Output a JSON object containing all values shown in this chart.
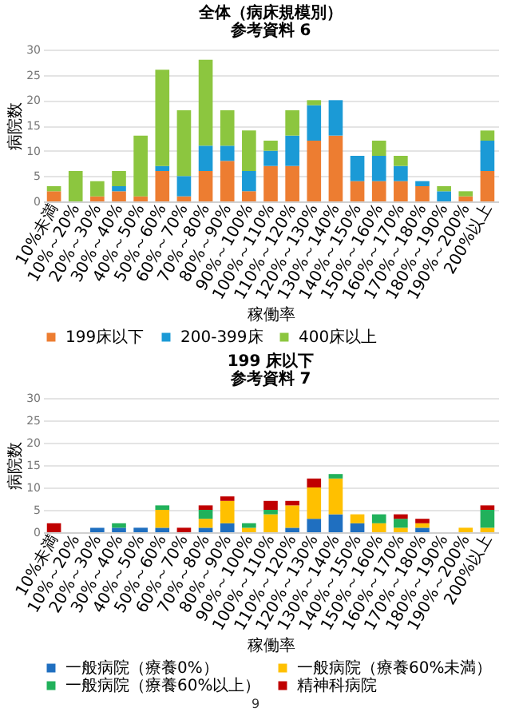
{
  "chart_data": [
    {
      "type": "bar",
      "title": "全体（病床規模別）",
      "subtitle": "参考資料 6",
      "xlabel": "稼働率",
      "ylabel": "病院数",
      "stacked": true,
      "grid": "y",
      "legend": "bottom",
      "categories": [
        "10%未満",
        "10%～20%",
        "20%～30%",
        "30%～40%",
        "40%～50%",
        "50%～60%",
        "60%～70%",
        "70%～80%",
        "80%～90%",
        "90%～100%",
        "100%～110%",
        "110%～120%",
        "120%～130%",
        "130%～140%",
        "140%～150%",
        "150%～160%",
        "160%～170%",
        "170%～180%",
        "180%～190%",
        "190%～200%",
        "200%以上"
      ],
      "ylim": [
        0,
        30
      ],
      "yticks": [
        0,
        5,
        10,
        15,
        20,
        25,
        30
      ],
      "series": [
        {
          "name": "199床以下",
          "color": "#ed7d31",
          "values": [
            2,
            0,
            1,
            2,
            1,
            6,
            1,
            6,
            8,
            2,
            7,
            7,
            12,
            13,
            4,
            4,
            4,
            3,
            0,
            1,
            6
          ]
        },
        {
          "name": "200-399床",
          "color": "#1b9ad6",
          "values": [
            0,
            0,
            0,
            1,
            0,
            1,
            4,
            5,
            3,
            4,
            3,
            6,
            7,
            7,
            5,
            5,
            3,
            1,
            2,
            0,
            6
          ]
        },
        {
          "name": "400床以上",
          "color": "#8cc63f",
          "values": [
            1,
            6,
            3,
            3,
            12,
            19,
            13,
            17,
            7,
            8,
            2,
            5,
            1,
            0,
            0,
            3,
            2,
            0,
            1,
            1,
            2
          ]
        }
      ]
    },
    {
      "type": "bar",
      "title": "199 床以下",
      "subtitle": "参考資料 7",
      "xlabel": "稼働率",
      "ylabel": "病院数",
      "stacked": true,
      "grid": "y",
      "legend": "bottom",
      "categories": [
        "10%未満",
        "10%～20%",
        "20%～30%",
        "30%～40%",
        "40%～50%",
        "50%～60%",
        "60%～70%",
        "70%～80%",
        "80%～90%",
        "90%～100%",
        "100%～110%",
        "110%～120%",
        "120%～130%",
        "130%～140%",
        "140%～150%",
        "150%～160%",
        "160%～170%",
        "170%～180%",
        "180%～190%",
        "190%～200%",
        "200%以上"
      ],
      "ylim": [
        0,
        30
      ],
      "yticks": [
        0,
        5,
        10,
        15,
        20,
        25,
        30
      ],
      "series": [
        {
          "name": "一般病院（療養0%）",
          "color": "#1f6fc0",
          "values": [
            0,
            0,
            1,
            1,
            1,
            1,
            0,
            1,
            2,
            0,
            0,
            1,
            3,
            4,
            2,
            0,
            0,
            1,
            0,
            0,
            0
          ]
        },
        {
          "name": "一般病院（療養60%未満）",
          "color": "#ffc000",
          "values": [
            0,
            0,
            0,
            0,
            0,
            4,
            0,
            2,
            5,
            1,
            4,
            5,
            7,
            8,
            2,
            2,
            1,
            1,
            0,
            1,
            1
          ]
        },
        {
          "name": "一般病院（療養60%以上）",
          "color": "#21b15b",
          "values": [
            0,
            0,
            0,
            1,
            0,
            1,
            0,
            2,
            0,
            1,
            1,
            0,
            0,
            1,
            0,
            2,
            2,
            0,
            0,
            0,
            4
          ]
        },
        {
          "name": "精神科病院",
          "color": "#c00000",
          "values": [
            2,
            0,
            0,
            0,
            0,
            0,
            1,
            1,
            1,
            0,
            2,
            1,
            2,
            0,
            0,
            0,
            1,
            1,
            0,
            0,
            1
          ]
        }
      ],
      "annotations": [
        "9"
      ]
    }
  ]
}
